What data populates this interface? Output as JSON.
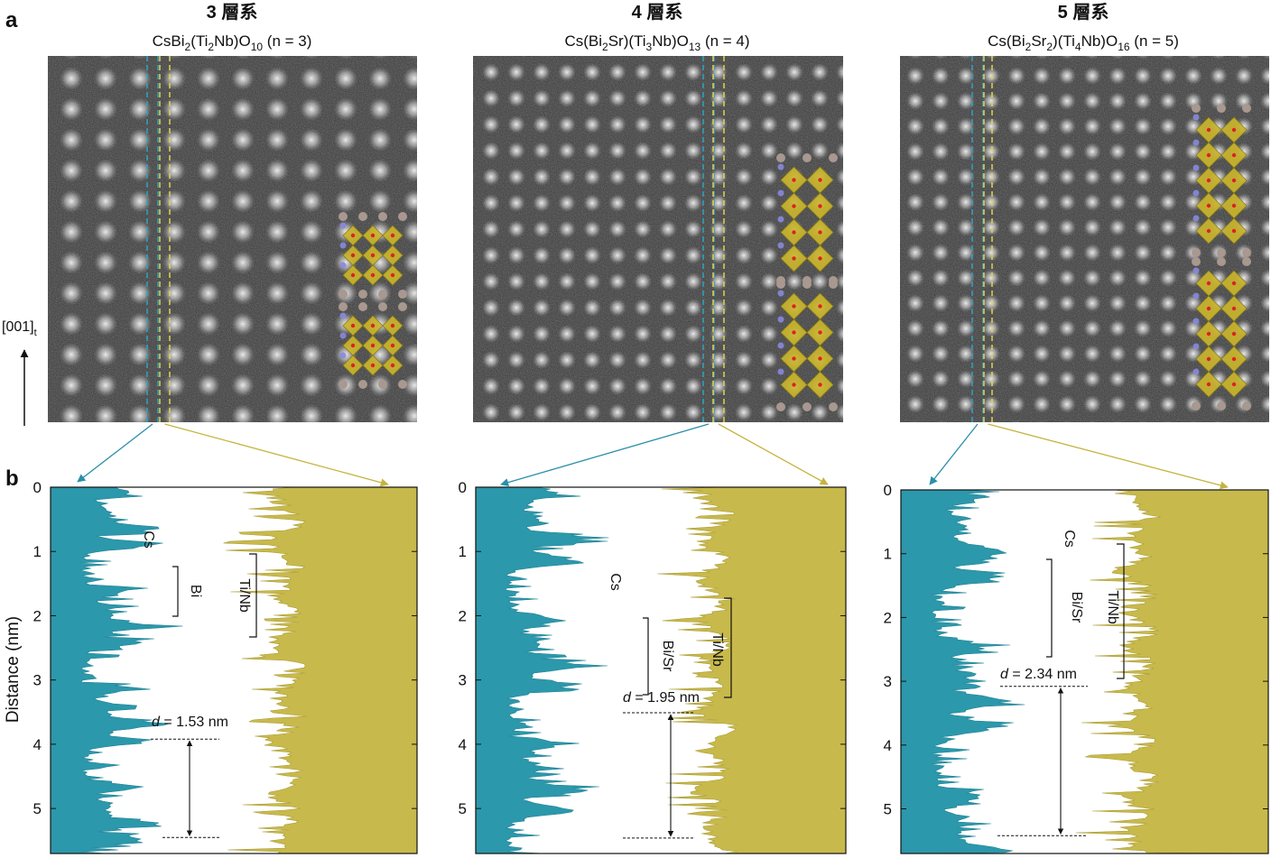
{
  "panel_labels": [
    "a",
    "b"
  ],
  "axis_arrow_label": [
    "[001]",
    "t"
  ],
  "y_axis_label": "Distance (nm)",
  "panels": [
    {
      "title": "3 層系",
      "formula": [
        "CsBi",
        "2",
        "(Ti",
        "2",
        "Nb)O",
        "10",
        " (n = 3)"
      ],
      "ylim": [
        0,
        5.7
      ],
      "yticks": [
        0,
        1,
        2,
        3,
        4,
        5
      ],
      "annotations": [
        "Cs",
        "Bi",
        "Ti/Nb"
      ],
      "d_symbol": "d",
      "d_text": " = 1.53 nm",
      "d_value": 1.53,
      "d_from": 3.92
    },
    {
      "title": "4 層系",
      "formula": [
        "Cs(Bi",
        "2",
        "Sr)(Ti",
        "3",
        "Nb)O",
        "13",
        " (n = 4)"
      ],
      "ylim": [
        0,
        5.7
      ],
      "yticks": [
        0,
        1,
        2,
        3,
        4,
        5
      ],
      "annotations": [
        "Cs",
        "Bi/Sr",
        "Ti/Nb"
      ],
      "d_symbol": "d",
      "d_text": " = 1.95 nm",
      "d_value": 1.95,
      "d_from": 3.51
    },
    {
      "title": "5 層系",
      "formula": [
        "Cs(Bi",
        "2",
        "Sr",
        "2",
        ")(Ti",
        "4",
        "Nb)O",
        "16",
        " (n = 5)"
      ],
      "ylim": [
        0,
        5.7
      ],
      "yticks": [
        0,
        1,
        2,
        3,
        4,
        5
      ],
      "annotations": [
        "Cs",
        "Bi/Sr",
        "Ti/Nb"
      ],
      "d_symbol": "d",
      "d_text": " = 2.34 nm",
      "d_value": 2.34,
      "d_from": 3.08
    }
  ]
}
